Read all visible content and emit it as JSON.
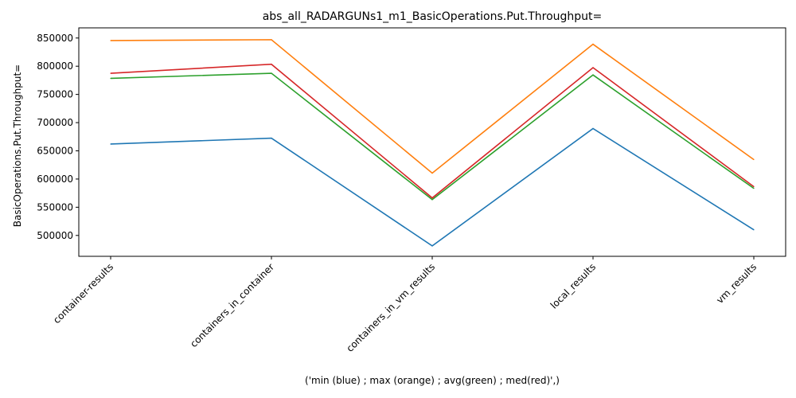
{
  "chart_data": {
    "type": "line",
    "title": "abs_all_RADARGUNs1_m1_BasicOperations.Put.Throughput=",
    "xlabel": "('min (blue) ; max (orange) ; avg(green) ; med(red)',)",
    "ylabel": "BasicOperations.Put.Throughput=",
    "categories": [
      "container-results",
      "containers_in_container",
      "containers_in_vm_results",
      "local_results",
      "vm_results"
    ],
    "ylim": [
      463000,
      868000
    ],
    "yticks": [
      500000,
      550000,
      600000,
      650000,
      700000,
      750000,
      800000,
      850000
    ],
    "grid": false,
    "series": [
      {
        "color": "#1f77b4",
        "values": [
          662000,
          672500,
          481500,
          689500,
          510000
        ]
      },
      {
        "color": "#ff7f0e",
        "values": [
          845500,
          847000,
          610500,
          839000,
          634500
        ]
      },
      {
        "color": "#2ca02c",
        "values": [
          778500,
          787500,
          563500,
          784500,
          583500
        ]
      },
      {
        "color": "#d62728",
        "values": [
          787500,
          803500,
          566500,
          797500,
          586500
        ]
      }
    ]
  }
}
